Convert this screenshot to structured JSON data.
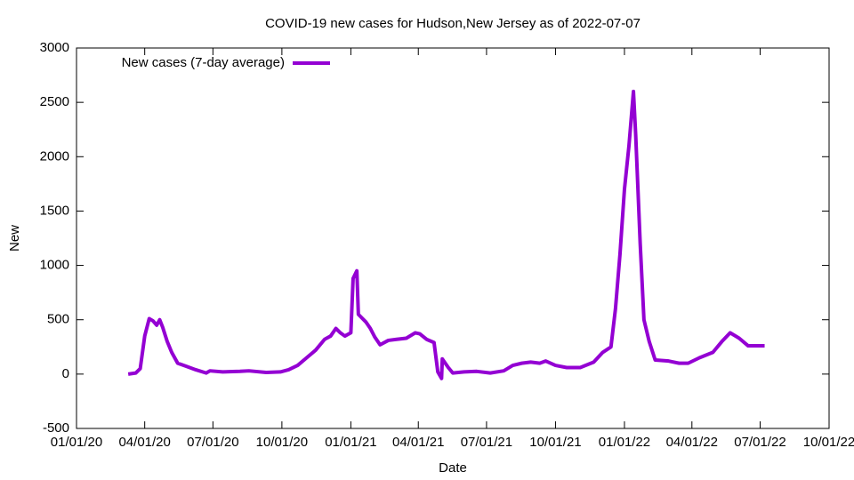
{
  "chart_data": {
    "type": "line",
    "title": "COVID-19 new cases for Hudson,New Jersey as of 2022-07-07",
    "xlabel": "Date",
    "ylabel": "New",
    "legend": "top-left",
    "x": [
      "2020-03-10",
      "2020-03-20",
      "2020-03-26",
      "2020-04-01",
      "2020-04-07",
      "2020-04-12",
      "2020-04-17",
      "2020-04-21",
      "2020-04-25",
      "2020-05-01",
      "2020-05-07",
      "2020-05-15",
      "2020-05-27",
      "2020-06-08",
      "2020-06-22",
      "2020-06-27",
      "2020-07-14",
      "2020-08-06",
      "2020-08-18",
      "2020-09-10",
      "2020-09-29",
      "2020-10-10",
      "2020-10-22",
      "2020-11-03",
      "2020-11-15",
      "2020-11-27",
      "2020-12-05",
      "2020-12-12",
      "2020-12-18",
      "2020-12-24",
      "2021-01-01",
      "2021-01-04",
      "2021-01-09",
      "2021-01-11",
      "2021-01-21",
      "2021-01-27",
      "2021-02-02",
      "2021-02-09",
      "2021-02-20",
      "2021-03-03",
      "2021-03-16",
      "2021-03-28",
      "2021-04-03",
      "2021-04-12",
      "2021-04-22",
      "2021-04-27",
      "2021-05-02",
      "2021-05-03",
      "2021-05-11",
      "2021-05-17",
      "2021-06-01",
      "2021-06-18",
      "2021-07-06",
      "2021-07-24",
      "2021-08-05",
      "2021-08-17",
      "2021-08-29",
      "2021-09-10",
      "2021-09-18",
      "2021-10-01",
      "2021-10-16",
      "2021-11-03",
      "2021-11-21",
      "2021-12-03",
      "2021-12-14",
      "2021-12-20",
      "2021-12-26",
      "2022-01-01",
      "2022-01-07",
      "2022-01-13",
      "2022-01-16",
      "2022-01-22",
      "2022-01-27",
      "2022-02-03",
      "2022-02-11",
      "2022-03-01",
      "2022-03-15",
      "2022-03-27",
      "2022-04-11",
      "2022-04-29",
      "2022-05-11",
      "2022-05-22",
      "2022-06-03",
      "2022-06-15",
      "2022-06-29",
      "2022-07-07"
    ],
    "series": [
      {
        "name": "New cases (7-day average)",
        "color": "#9400d3",
        "values": [
          0,
          10,
          50,
          350,
          510,
          490,
          450,
          500,
          430,
          300,
          200,
          100,
          70,
          40,
          10,
          30,
          20,
          25,
          30,
          15,
          20,
          40,
          80,
          150,
          220,
          320,
          350,
          420,
          380,
          350,
          380,
          880,
          950,
          550,
          480,
          420,
          340,
          270,
          310,
          320,
          330,
          380,
          370,
          320,
          290,
          20,
          -40,
          140,
          60,
          10,
          20,
          25,
          10,
          30,
          80,
          100,
          110,
          100,
          120,
          80,
          60,
          60,
          110,
          200,
          250,
          600,
          1100,
          1700,
          2100,
          2600,
          2200,
          1200,
          500,
          300,
          130,
          120,
          100,
          100,
          150,
          200,
          300,
          380,
          330,
          260,
          260,
          260
        ]
      }
    ],
    "xlim": [
      "2020-01-01",
      "2022-10-01"
    ],
    "xticks": [
      {
        "value": "2020-01-01",
        "label": "01/01/20"
      },
      {
        "value": "2020-04-01",
        "label": "04/01/20"
      },
      {
        "value": "2020-07-01",
        "label": "07/01/20"
      },
      {
        "value": "2020-10-01",
        "label": "10/01/20"
      },
      {
        "value": "2021-01-01",
        "label": "01/01/21"
      },
      {
        "value": "2021-04-01",
        "label": "04/01/21"
      },
      {
        "value": "2021-07-01",
        "label": "07/01/21"
      },
      {
        "value": "2021-10-01",
        "label": "10/01/21"
      },
      {
        "value": "2022-01-01",
        "label": "01/01/22"
      },
      {
        "value": "2022-04-01",
        "label": "04/01/22"
      },
      {
        "value": "2022-07-01",
        "label": "07/01/22"
      },
      {
        "value": "2022-10-01",
        "label": "10/01/22"
      }
    ],
    "ylim": [
      -500,
      3000
    ],
    "yticks": [
      -500,
      0,
      500,
      1000,
      1500,
      2000,
      2500,
      3000
    ]
  }
}
